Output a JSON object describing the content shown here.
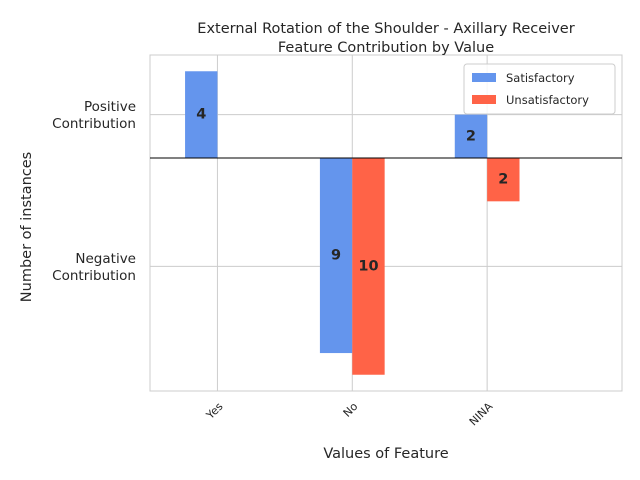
{
  "chart_data": {
    "type": "bar",
    "title": "External Rotation of the Shoulder - Axillary Receiver",
    "subtitle": "Feature Contribution by Value",
    "xlabel": "Values of Feature",
    "ylabel": "Number of instances",
    "categories": [
      "Yes",
      "No",
      "NINA"
    ],
    "series": [
      {
        "name": "Satisfactory",
        "color": "#6495ED",
        "values": [
          4,
          -9,
          2
        ]
      },
      {
        "name": "Unsatisfactory",
        "color": "#FF6347",
        "values": [
          0,
          -10,
          -2
        ]
      }
    ],
    "data_labels": [
      [
        "4",
        "9",
        "2"
      ],
      [
        "",
        "10",
        "2"
      ]
    ],
    "ytick_labels": [
      {
        "value": 2,
        "text": "Positive\nContribution"
      },
      {
        "value": -5,
        "text": "Negative\nContribution"
      }
    ],
    "ylim": [
      -10.75,
      4.75
    ],
    "grid": true,
    "legend_position": "top-right"
  }
}
